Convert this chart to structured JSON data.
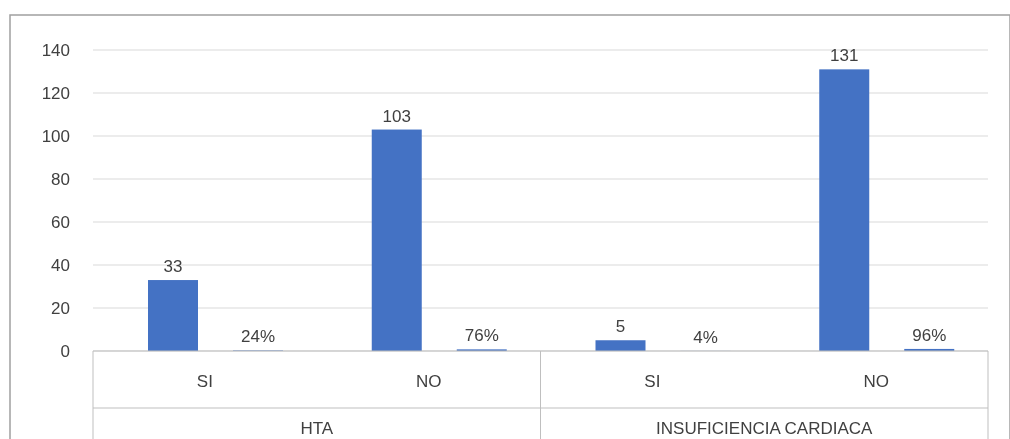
{
  "chart_data": {
    "type": "bar",
    "categories": [
      "SI",
      "NO",
      "SI",
      "NO"
    ],
    "series": [
      {
        "color": "#4472c4",
        "values": [
          33,
          103,
          5,
          131
        ],
        "value_labels": [
          "33",
          "103",
          "5",
          "131"
        ]
      },
      {
        "color": "#4472c4",
        "values": [
          0.24,
          0.76,
          0.04,
          0.96
        ],
        "value_labels": [
          "24%",
          "76%",
          "4%",
          "96%"
        ]
      }
    ],
    "ylim": [
      0,
      140
    ],
    "yticks": [
      0,
      20,
      40,
      60,
      80,
      100,
      120,
      140
    ],
    "grid": "y",
    "annotations": [
      "HTA",
      "INSUFICIENCIA CARDIACA"
    ]
  }
}
